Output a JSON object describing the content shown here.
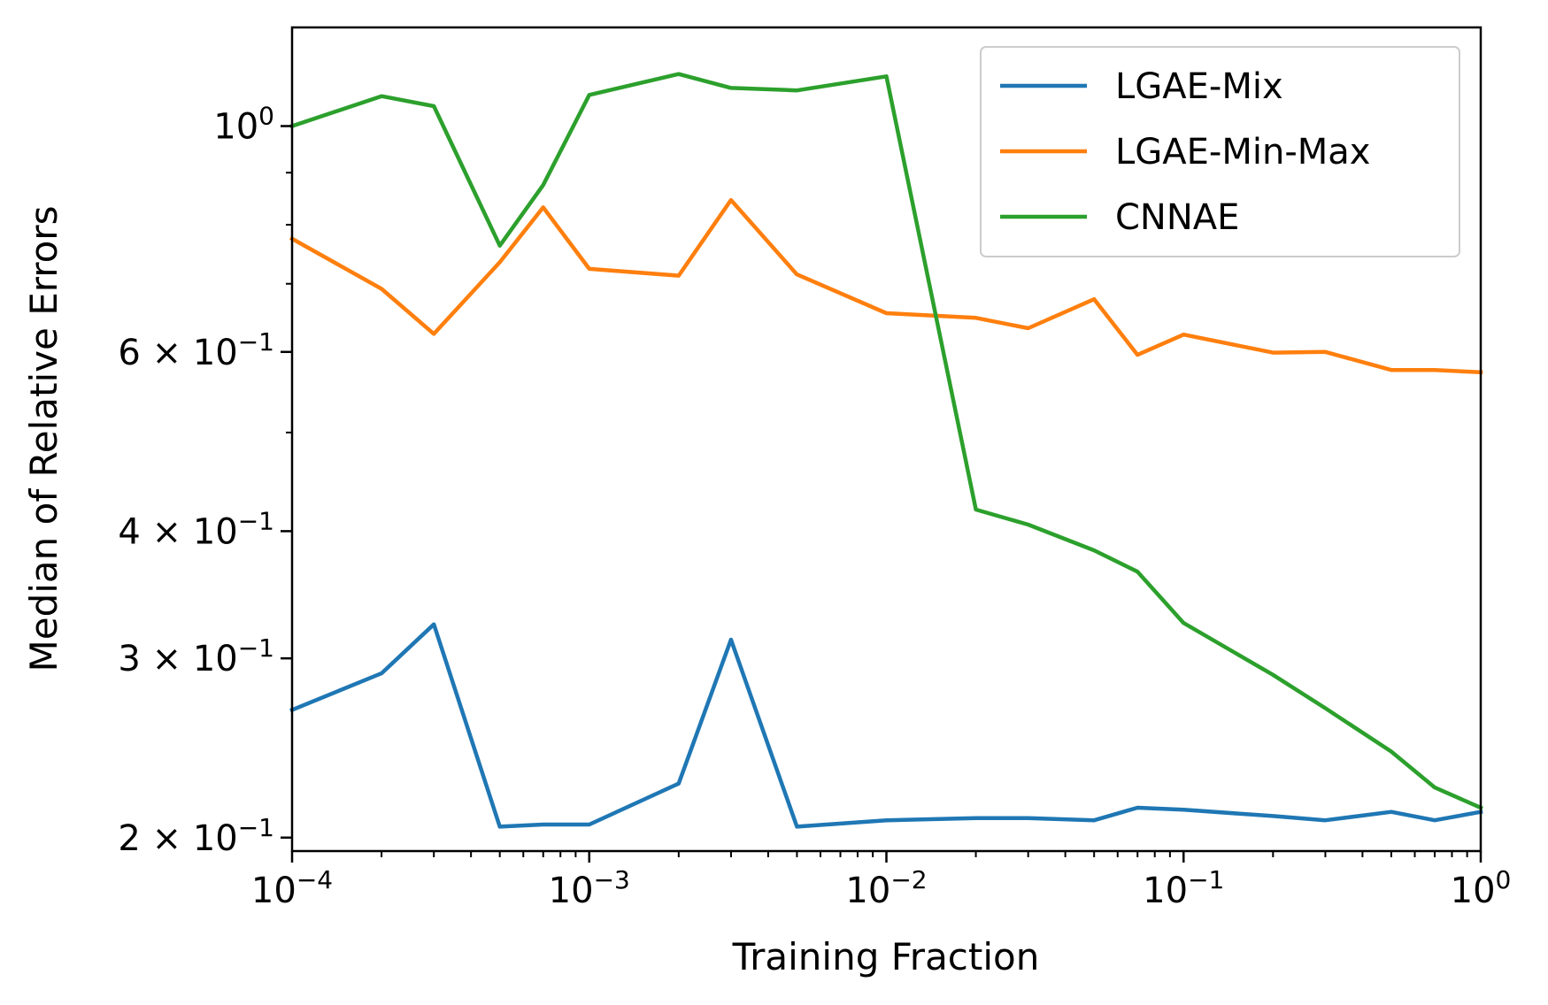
{
  "chart_data": {
    "type": "line",
    "xlabel": "Training Fraction",
    "ylabel": "Median of Relative Errors",
    "xscale": "log",
    "yscale": "log",
    "xlim": [
      0.0001,
      1
    ],
    "ylim": [
      0.194,
      1.25
    ],
    "x_ticks": [
      {
        "value": 0.0001,
        "base": "10",
        "exp": "−4"
      },
      {
        "value": 0.001,
        "base": "10",
        "exp": "−3"
      },
      {
        "value": 0.01,
        "base": "10",
        "exp": "−2"
      },
      {
        "value": 0.1,
        "base": "10",
        "exp": "−1"
      },
      {
        "value": 1,
        "base": "10",
        "exp": "0"
      }
    ],
    "y_ticks": [
      {
        "value": 1.0,
        "mant": "",
        "base": "10",
        "exp": "0"
      },
      {
        "value": 0.6,
        "mant": "6 × ",
        "base": "10",
        "exp": "−1"
      },
      {
        "value": 0.4,
        "mant": "4 × ",
        "base": "10",
        "exp": "−1"
      },
      {
        "value": 0.3,
        "mant": "3 × ",
        "base": "10",
        "exp": "−1"
      },
      {
        "value": 0.2,
        "mant": "2 × ",
        "base": "10",
        "exp": "−1"
      }
    ],
    "x": [
      0.0001,
      0.0002,
      0.0003,
      0.0005,
      0.0007,
      0.001,
      0.002,
      0.003,
      0.005,
      0.01,
      0.02,
      0.03,
      0.05,
      0.07,
      0.1,
      0.2,
      0.3,
      0.5,
      0.7,
      1
    ],
    "series": [
      {
        "name": "LGAE-Mix",
        "color": "#1f77b4",
        "values": [
          0.267,
          0.29,
          0.324,
          0.205,
          0.206,
          0.206,
          0.226,
          0.313,
          0.205,
          0.208,
          0.209,
          0.209,
          0.208,
          0.214,
          0.213,
          0.21,
          0.208,
          0.212,
          0.208,
          0.212
        ]
      },
      {
        "name": "LGAE-Min-Max",
        "color": "#ff7f0e",
        "values": [
          0.775,
          0.692,
          0.625,
          0.735,
          0.832,
          0.724,
          0.713,
          0.846,
          0.715,
          0.655,
          0.648,
          0.633,
          0.676,
          0.596,
          0.624,
          0.599,
          0.6,
          0.576,
          0.576,
          0.573
        ]
      },
      {
        "name": "CNNAE",
        "color": "#2ca02c",
        "values": [
          1.0,
          1.07,
          1.046,
          0.763,
          0.875,
          1.073,
          1.125,
          1.09,
          1.084,
          1.119,
          0.42,
          0.406,
          0.383,
          0.365,
          0.325,
          0.289,
          0.268,
          0.243,
          0.224,
          0.214
        ]
      }
    ],
    "legend": {
      "placement": "top-right"
    },
    "grid": false
  }
}
